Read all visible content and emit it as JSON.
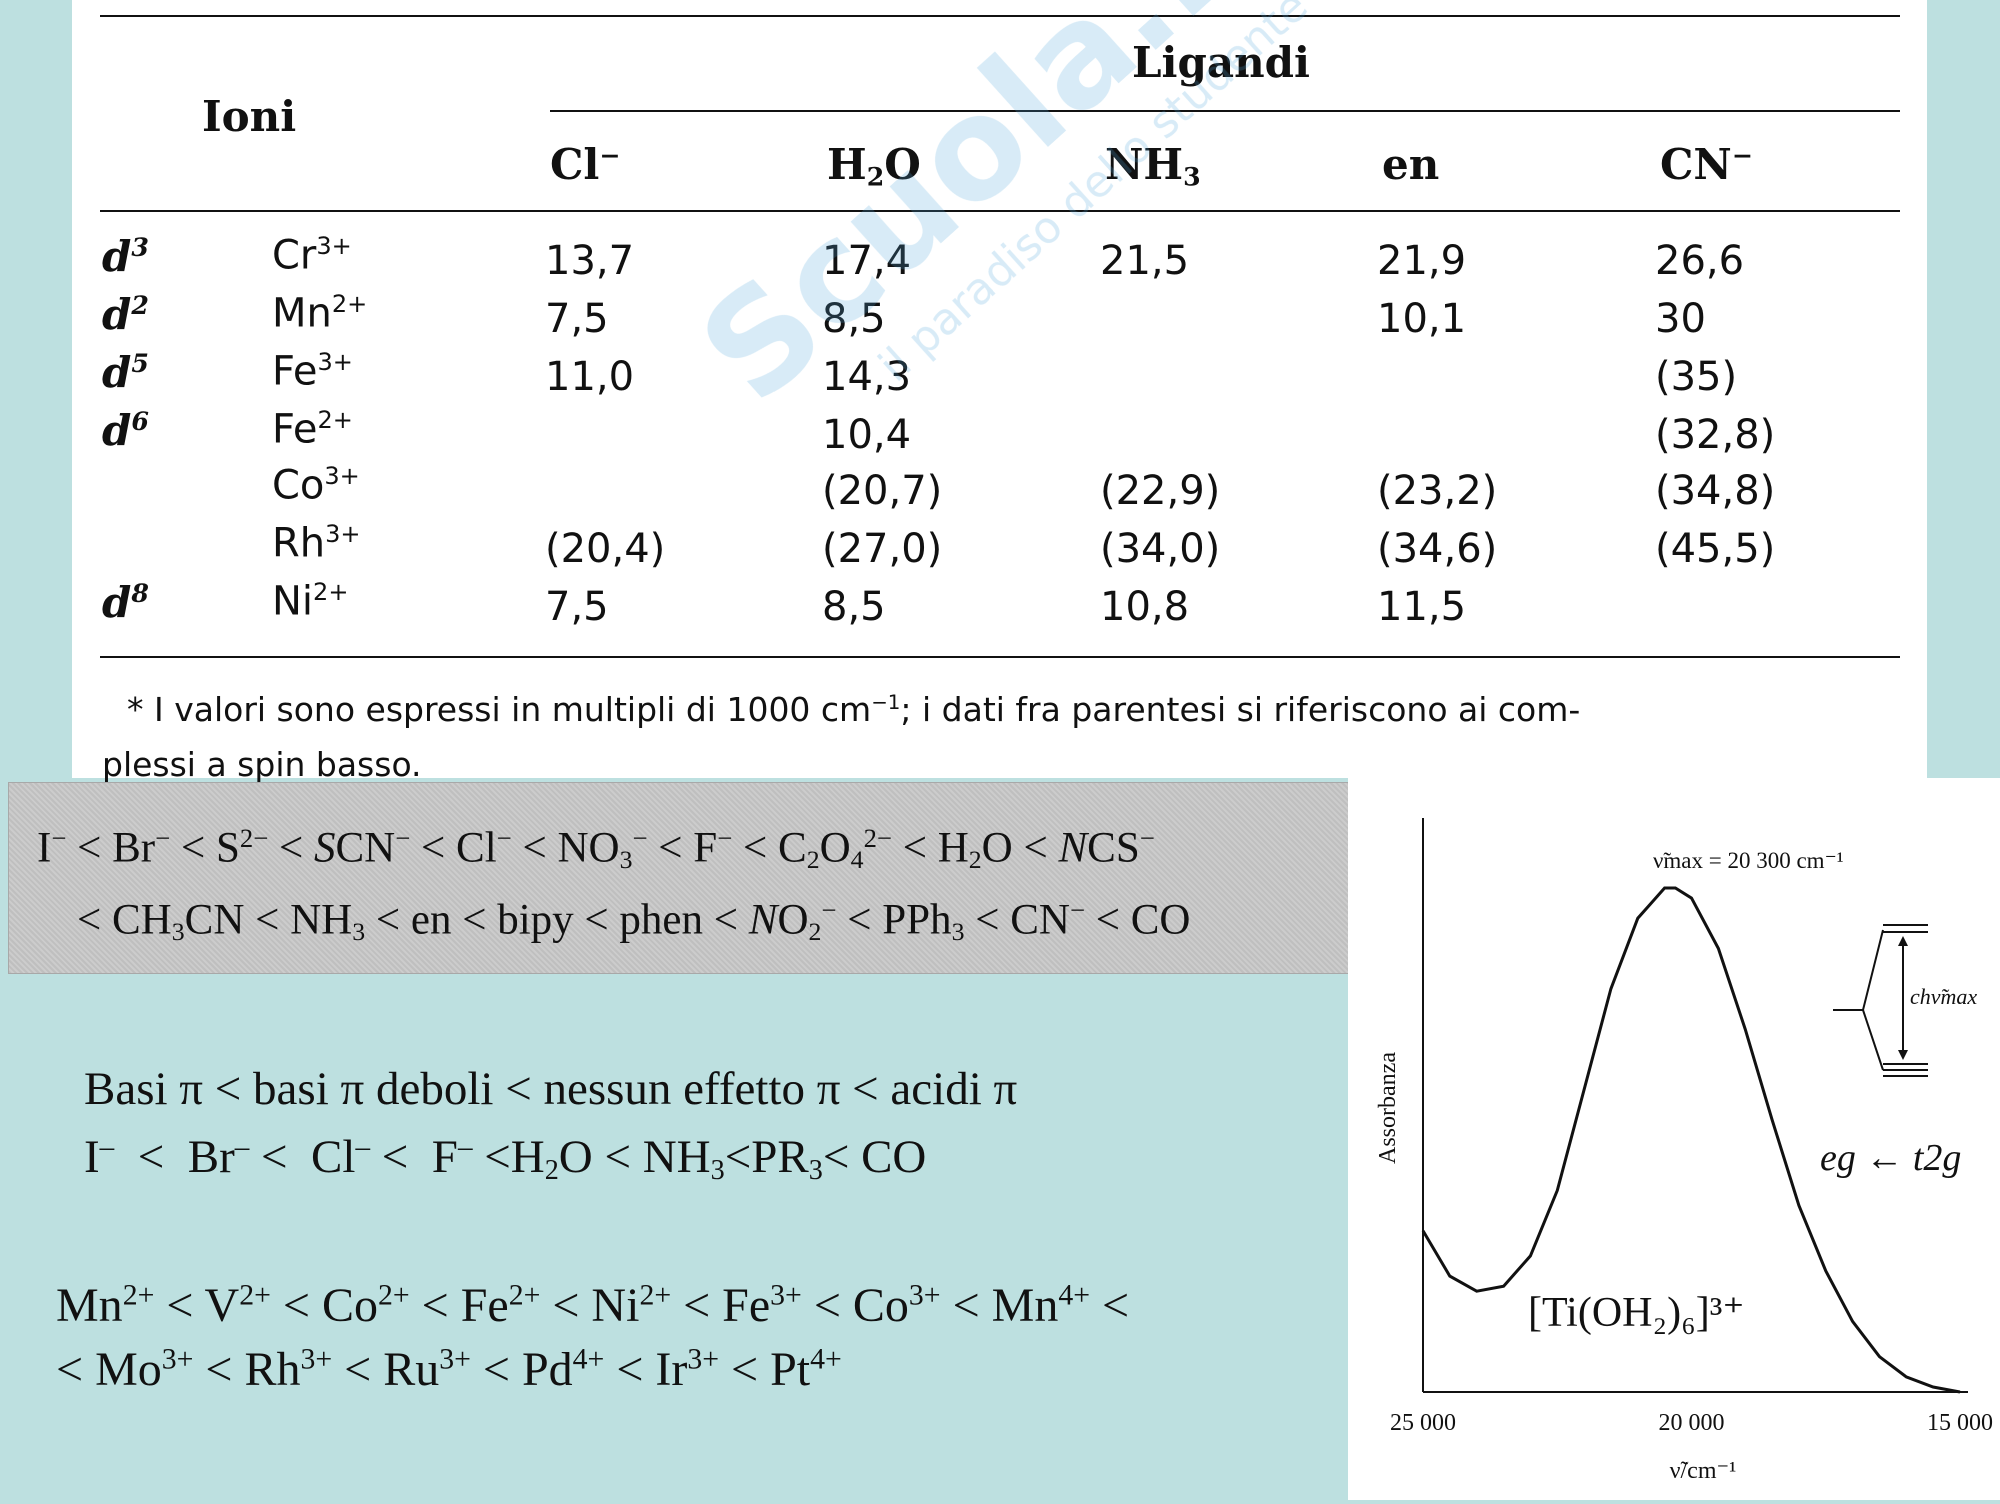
{
  "table": {
    "header": {
      "ions": "Ioni",
      "ligands": "Ligandi",
      "columns": [
        {
          "base": "Cl",
          "sub": "",
          "sup": "−"
        },
        {
          "base": "H",
          "sub": "2",
          "tail": "O"
        },
        {
          "base": "NH",
          "sub": "3",
          "sup": ""
        },
        {
          "base": "en",
          "sub": "",
          "sup": ""
        },
        {
          "base": "CN",
          "sub": "",
          "sup": "−"
        }
      ]
    },
    "rows": [
      {
        "config": "d",
        "config_exp": "3",
        "ion": "Cr",
        "charge": "3+",
        "values": [
          "13,7",
          "17,4",
          "21,5",
          "21,9",
          "26,6"
        ]
      },
      {
        "config": "d",
        "config_exp": "2",
        "ion": "Mn",
        "charge": "2+",
        "values": [
          "7,5",
          "8,5",
          "",
          "10,1",
          "30"
        ]
      },
      {
        "config": "d",
        "config_exp": "5",
        "ion": "Fe",
        "charge": "3+",
        "values": [
          "11,0",
          "14,3",
          "",
          "",
          "(35)"
        ]
      },
      {
        "config": "d",
        "config_exp": "6",
        "ion": "Fe",
        "charge": "2+",
        "values": [
          "",
          "10,4",
          "",
          "",
          "(32,8)"
        ]
      },
      {
        "config": "",
        "config_exp": "",
        "ion": "Co",
        "charge": "3+",
        "values": [
          "",
          "(20,7)",
          "(22,9)",
          "(23,2)",
          "(34,8)"
        ]
      },
      {
        "config": "",
        "config_exp": "",
        "ion": "Rh",
        "charge": "3+",
        "values": [
          "(20,4)",
          "(27,0)",
          "(34,0)",
          "(34,6)",
          "(45,5)"
        ]
      },
      {
        "config": "d",
        "config_exp": "8",
        "ion": "Ni",
        "charge": "2+",
        "values": [
          "7,5",
          "8,5",
          "10,8",
          "11,5",
          ""
        ]
      }
    ],
    "footnote_a": "* I valori sono espressi in multipli di 1000 cm",
    "footnote_exp": "−1",
    "footnote_b": "; i dati fra parentesi si riferiscono ai com-",
    "footnote_line2": "plessi a spin basso."
  },
  "watermark": {
    "main": "Scuola.net",
    "sub": "il paradiso dello studente"
  },
  "spectrochemical_series": {
    "line1_parts": [
      "I",
      "−",
      " < Br",
      "−",
      " < S",
      "2−",
      " < ",
      "S",
      "CN",
      "−",
      " < Cl",
      "−",
      " < NO",
      "3",
      "−",
      " < F",
      "−",
      " < C",
      "2",
      "O",
      "4",
      "2−",
      " < H",
      "2",
      "O < ",
      "N",
      "CS",
      "−"
    ],
    "line1_text": "I⁻ < Br⁻ < S²⁻ < SCN⁻ < Cl⁻ < NO₃⁻ < F⁻ < C₂O₄²⁻ < H₂O < NCS⁻",
    "line2_text": "< CH₃CN < NH₃ < en < bipy < phen < NO₂⁻ < PPh₃ < CN⁻ < CO"
  },
  "pi_series": {
    "line1": "Basi π < basi π deboli < nessun effetto π < acidi π",
    "line2_text": "I⁻ < Br⁻ < Cl⁻ < F⁻ <H₂O < NH₃<PR₃< CO"
  },
  "metal_series": {
    "line1_text": "Mn²⁺ < V²⁺ < Co²⁺ < Fe²⁺ < Ni²⁺ < Fe³⁺ < Co³⁺ < Mn⁴⁺ <",
    "line2_text": "< Mo³⁺ < Rh³⁺ < Ru³⁺ < Pd⁴⁺ < Ir³⁺ < Pt⁴⁺"
  },
  "chart_data": {
    "type": "line",
    "title": "",
    "xlabel": "ν̃/cm⁻¹",
    "ylabel": "Assorbanza",
    "xlim": [
      25000,
      15000
    ],
    "ylim": [
      0,
      1
    ],
    "x_ticks": [
      "25 000",
      "20 000",
      "15 000"
    ],
    "series": [
      {
        "name": "",
        "x": [
          25000,
          24500,
          24000,
          23500,
          23000,
          22500,
          22000,
          21500,
          21000,
          20500,
          20300,
          20000,
          19500,
          19000,
          18500,
          18000,
          17500,
          17000,
          16500,
          16000,
          15500,
          15000
        ],
        "y": [
          0.32,
          0.23,
          0.2,
          0.21,
          0.27,
          0.4,
          0.6,
          0.8,
          0.94,
          1.0,
          1.0,
          0.98,
          0.88,
          0.72,
          0.54,
          0.37,
          0.24,
          0.14,
          0.07,
          0.03,
          0.01,
          0.0
        ]
      }
    ],
    "annotations": {
      "peak": "ν̃max = 20 300 cm⁻¹",
      "complex": "[Ti(OH₂)₆]³⁺",
      "transition": "eg ← t2g",
      "energy_label": "chν̃max"
    }
  }
}
